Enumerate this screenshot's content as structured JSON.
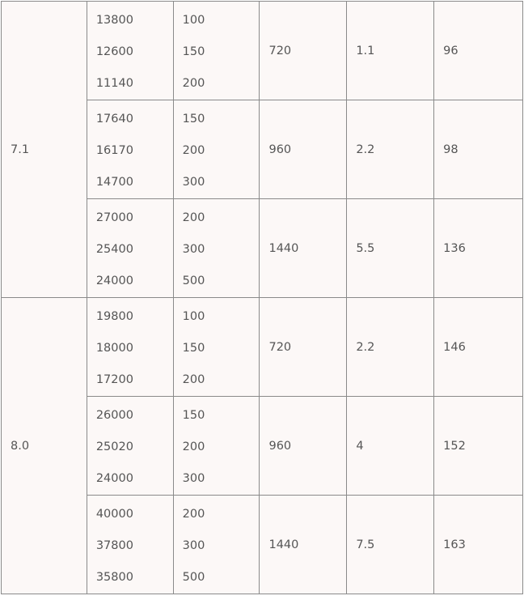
{
  "table": {
    "groups": [
      {
        "label": "7.1",
        "rows": [
          {
            "a": [
              "13800",
              "12600",
              "11140"
            ],
            "b": [
              "100",
              "150",
              "200"
            ],
            "c": "720",
            "d": "1.1",
            "e": "96"
          },
          {
            "a": [
              "17640",
              "16170",
              "14700"
            ],
            "b": [
              "150",
              "200",
              "300"
            ],
            "c": "960",
            "d": "2.2",
            "e": "98"
          },
          {
            "a": [
              "27000",
              "25400",
              "24000"
            ],
            "b": [
              "200",
              "300",
              "500"
            ],
            "c": "1440",
            "d": "5.5",
            "e": "136"
          }
        ]
      },
      {
        "label": "8.0",
        "rows": [
          {
            "a": [
              "19800",
              "18000",
              "17200"
            ],
            "b": [
              "100",
              "150",
              "200"
            ],
            "c": "720",
            "d": "2.2",
            "e": "146"
          },
          {
            "a": [
              "26000",
              "25020",
              "24000"
            ],
            "b": [
              "150",
              "200",
              "300"
            ],
            "c": "960",
            "d": "4",
            "e": "152"
          },
          {
            "a": [
              "40000",
              "37800",
              "35800"
            ],
            "b": [
              "200",
              "300",
              "500"
            ],
            "c": "1440",
            "d": "7.5",
            "e": "163"
          }
        ]
      }
    ]
  }
}
